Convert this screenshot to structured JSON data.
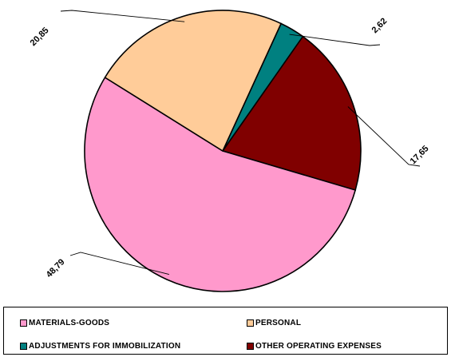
{
  "chart_data": {
    "type": "pie",
    "title": "",
    "slices": [
      {
        "name": "MATERIALS-GOODS",
        "value": 48.79,
        "label": "48,79",
        "color": "#FF99CC"
      },
      {
        "name": "PERSONAL",
        "value": 20.85,
        "label": "20,85",
        "color": "#FFCC99"
      },
      {
        "name": "ADJUSTMENTS FOR IMMOBILIZATION",
        "value": 2.62,
        "label": "2,62",
        "color": "#008080"
      },
      {
        "name": "OTHER OPERATING EXPENSES",
        "value": 17.65,
        "label": "17,65",
        "color": "#800000"
      }
    ],
    "legend_position": "bottom"
  }
}
